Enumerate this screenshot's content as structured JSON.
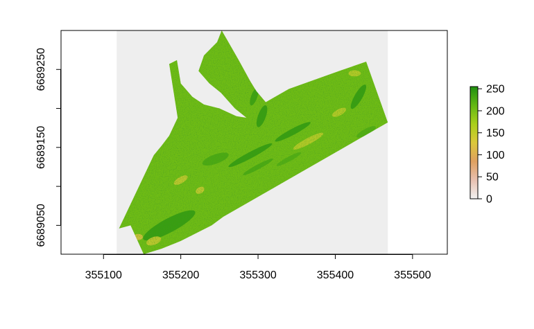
{
  "chart_data": {
    "type": "heatmap",
    "title": "",
    "xlabel": "",
    "ylabel": "",
    "xlim": [
      355045,
      355545
    ],
    "ylim": [
      6689013,
      6689300
    ],
    "x_ticks": [
      355100,
      355200,
      355300,
      355400,
      355500
    ],
    "x_tick_labels": [
      "355100",
      "355200",
      "355300",
      "355400",
      "355500"
    ],
    "y_ticks": [
      6689050,
      6689100,
      6689150,
      6689200,
      6689250
    ],
    "y_tick_labels": [
      "6689050",
      "",
      "6689150",
      "",
      "6689250"
    ],
    "raster_extent": {
      "x": [
        355117,
        355468
      ],
      "y": [
        6689013,
        6689300
      ]
    },
    "raster_background_color": "#eeeeee",
    "colorbar": {
      "range": [
        0,
        255
      ],
      "ticks": [
        0,
        50,
        100,
        150,
        200,
        250
      ],
      "tick_labels": [
        "0",
        "50",
        "100",
        "150",
        "200",
        "250"
      ],
      "colors": [
        "#f2f2f2",
        "#e8c0b0",
        "#dfa060",
        "#dcc83a",
        "#a9cf1a",
        "#63b814",
        "#1f8f10"
      ]
    },
    "grid": false,
    "legend": "right",
    "mask_polygon": [
      [
        355135,
        6689050
      ],
      [
        355152,
        6689013
      ],
      [
        355175,
        6689020
      ],
      [
        355200,
        6689030
      ],
      [
        355240,
        6689050
      ],
      [
        355255,
        6689061
      ],
      [
        355468,
        6689182
      ],
      [
        355440,
        6689260
      ],
      [
        355405,
        6689248
      ],
      [
        355340,
        6689225
      ],
      [
        355310,
        6689208
      ],
      [
        355298,
        6689222
      ],
      [
        355290,
        6689235
      ],
      [
        355275,
        6689262
      ],
      [
        355260,
        6689288
      ],
      [
        355253,
        6689300
      ],
      [
        355247,
        6689285
      ],
      [
        355240,
        6689278
      ],
      [
        355230,
        6689268
      ],
      [
        355223,
        6689248
      ],
      [
        355237,
        6689232
      ],
      [
        355252,
        6689220
      ],
      [
        355270,
        6689200
      ],
      [
        355285,
        6689188
      ],
      [
        355272,
        6689190
      ],
      [
        355250,
        6689200
      ],
      [
        355230,
        6689205
      ],
      [
        355215,
        6689215
      ],
      [
        355200,
        6689232
      ],
      [
        355195,
        6689262
      ],
      [
        355185,
        6689257
      ],
      [
        355196,
        6689188
      ],
      [
        355185,
        6689165
      ],
      [
        355175,
        6689152
      ],
      [
        355165,
        6689140
      ],
      [
        355120,
        6689046
      ]
    ],
    "patches": [
      {
        "cx": 355185,
        "cy": 6689050,
        "rx": 38,
        "ry": 9,
        "angle": -28,
        "value": 245
      },
      {
        "cx": 355165,
        "cy": 6689030,
        "rx": 10,
        "ry": 5,
        "angle": -20,
        "value": 140
      },
      {
        "cx": 355145,
        "cy": 6689035,
        "rx": 6,
        "ry": 4,
        "angle": 0,
        "value": 120
      },
      {
        "cx": 355200,
        "cy": 6689108,
        "rx": 10,
        "ry": 4,
        "angle": -30,
        "value": 140
      },
      {
        "cx": 355225,
        "cy": 6689095,
        "rx": 6,
        "ry": 4,
        "angle": -30,
        "value": 140
      },
      {
        "cx": 355290,
        "cy": 6689140,
        "rx": 32,
        "ry": 4,
        "angle": -28,
        "value": 245
      },
      {
        "cx": 355300,
        "cy": 6689125,
        "rx": 22,
        "ry": 3,
        "angle": -28,
        "value": 230
      },
      {
        "cx": 355345,
        "cy": 6689170,
        "rx": 26,
        "ry": 4,
        "angle": -28,
        "value": 245
      },
      {
        "cx": 355365,
        "cy": 6689158,
        "rx": 22,
        "ry": 4,
        "angle": -28,
        "value": 150
      },
      {
        "cx": 355305,
        "cy": 6689190,
        "rx": 15,
        "ry": 5,
        "angle": -70,
        "value": 245
      },
      {
        "cx": 355295,
        "cy": 6689215,
        "rx": 12,
        "ry": 4,
        "angle": -70,
        "value": 240
      },
      {
        "cx": 355405,
        "cy": 6689195,
        "rx": 10,
        "ry": 4,
        "angle": -28,
        "value": 150
      },
      {
        "cx": 355430,
        "cy": 6689215,
        "rx": 18,
        "ry": 5,
        "angle": -60,
        "value": 245
      },
      {
        "cx": 355440,
        "cy": 6689170,
        "rx": 14,
        "ry": 4,
        "angle": -28,
        "value": 225
      },
      {
        "cx": 355425,
        "cy": 6689245,
        "rx": 8,
        "ry": 4,
        "angle": 0,
        "value": 150
      },
      {
        "cx": 355340,
        "cy": 6689135,
        "rx": 18,
        "ry": 3,
        "angle": -28,
        "value": 225
      },
      {
        "cx": 355245,
        "cy": 6689135,
        "rx": 18,
        "ry": 6,
        "angle": -20,
        "value": 230
      }
    ]
  }
}
